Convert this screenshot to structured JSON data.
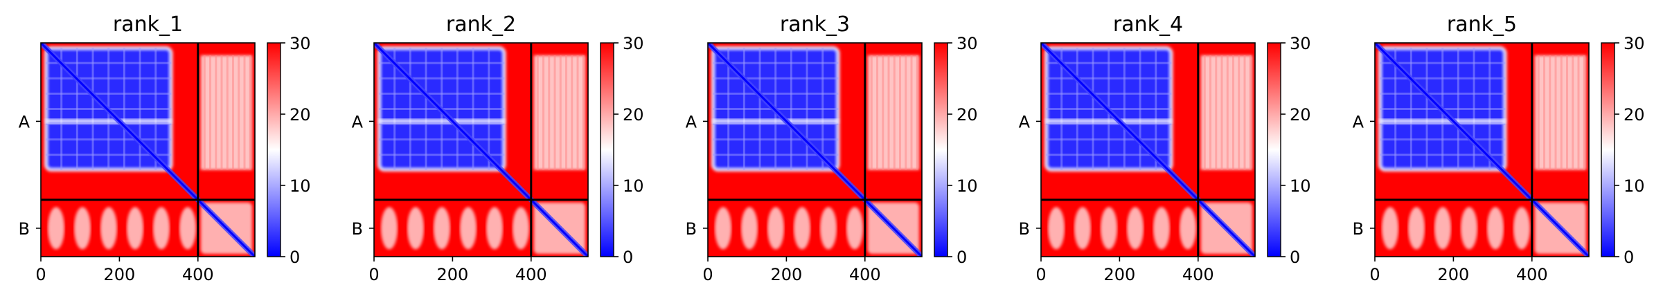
{
  "chart_data": [
    {
      "type": "heatmap",
      "title": "rank_1",
      "chains": [
        "A",
        "B"
      ],
      "chain_lengths": [
        400,
        145
      ],
      "chain_boundary": 400,
      "xticks": [
        0,
        200,
        400
      ],
      "ylabels": [
        "A",
        "B"
      ],
      "colorbar": {
        "min": 0,
        "max": 30,
        "ticks": [
          0,
          10,
          20,
          30
        ],
        "colors": [
          "#0000ff",
          "#ffffff",
          "#ff0000"
        ]
      }
    },
    {
      "type": "heatmap",
      "title": "rank_2",
      "chains": [
        "A",
        "B"
      ],
      "chain_lengths": [
        400,
        145
      ],
      "chain_boundary": 400,
      "xticks": [
        0,
        200,
        400
      ],
      "ylabels": [
        "A",
        "B"
      ],
      "colorbar": {
        "min": 0,
        "max": 30,
        "ticks": [
          0,
          10,
          20,
          30
        ],
        "colors": [
          "#0000ff",
          "#ffffff",
          "#ff0000"
        ]
      }
    },
    {
      "type": "heatmap",
      "title": "rank_3",
      "chains": [
        "A",
        "B"
      ],
      "chain_lengths": [
        400,
        145
      ],
      "chain_boundary": 400,
      "xticks": [
        0,
        200,
        400
      ],
      "ylabels": [
        "A",
        "B"
      ],
      "colorbar": {
        "min": 0,
        "max": 30,
        "ticks": [
          0,
          10,
          20,
          30
        ],
        "colors": [
          "#0000ff",
          "#ffffff",
          "#ff0000"
        ]
      }
    },
    {
      "type": "heatmap",
      "title": "rank_4",
      "chains": [
        "A",
        "B"
      ],
      "chain_lengths": [
        400,
        145
      ],
      "chain_boundary": 400,
      "xticks": [
        0,
        200,
        400
      ],
      "ylabels": [
        "A",
        "B"
      ],
      "colorbar": {
        "min": 0,
        "max": 30,
        "ticks": [
          0,
          10,
          20,
          30
        ],
        "colors": [
          "#0000ff",
          "#ffffff",
          "#ff0000"
        ]
      }
    },
    {
      "type": "heatmap",
      "title": "rank_5",
      "chains": [
        "A",
        "B"
      ],
      "chain_lengths": [
        400,
        145
      ],
      "chain_boundary": 400,
      "xticks": [
        0,
        200,
        400
      ],
      "ylabels": [
        "A",
        "B"
      ],
      "colorbar": {
        "min": 0,
        "max": 30,
        "ticks": [
          0,
          10,
          20,
          30
        ],
        "colors": [
          "#0000ff",
          "#ffffff",
          "#ff0000"
        ]
      }
    }
  ]
}
